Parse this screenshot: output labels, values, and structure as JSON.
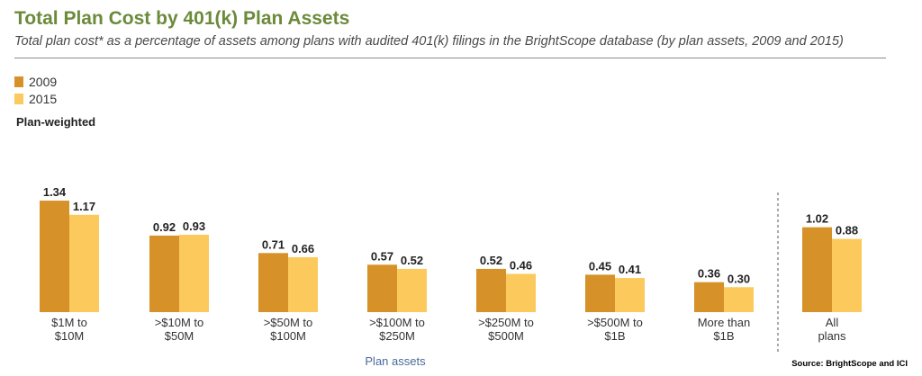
{
  "header": {
    "title": "Total Plan Cost by 401(k) Plan Assets",
    "subtitle": "Total plan cost* as a percentage of assets among plans with audited 401(k) filings in the BrightScope database (by plan assets, 2009 and 2015)"
  },
  "legend": {
    "items": [
      {
        "label": "2009",
        "color": "#d69128"
      },
      {
        "label": "2015",
        "color": "#fcc95c"
      }
    ]
  },
  "segment_label": "Plan-weighted",
  "source": "Source: BrightScope and ICI",
  "chart_data": {
    "type": "bar",
    "title": "Total Plan Cost by 401(k) Plan Assets",
    "xlabel": "Plan assets",
    "ylabel": "",
    "categories": [
      [
        "$1M to",
        "$10M"
      ],
      [
        ">$10M to",
        "$50M"
      ],
      [
        ">$50M to",
        "$100M"
      ],
      [
        ">$100M to",
        "$250M"
      ],
      [
        ">$250M to",
        "$500M"
      ],
      [
        ">$500M to",
        "$1B"
      ],
      [
        "More than",
        "$1B"
      ],
      [
        "All",
        "plans"
      ]
    ],
    "series": [
      {
        "name": "2009",
        "color": "#d69128",
        "values": [
          1.34,
          0.92,
          0.71,
          0.57,
          0.52,
          0.45,
          0.36,
          1.02
        ]
      },
      {
        "name": "2015",
        "color": "#fcc95c",
        "values": [
          1.17,
          0.93,
          0.66,
          0.52,
          0.46,
          0.41,
          0.3,
          0.88
        ]
      }
    ],
    "value_format": "0.00",
    "ylim": [
      0,
      1.5
    ],
    "grid": false,
    "legend_position": "top-left"
  }
}
